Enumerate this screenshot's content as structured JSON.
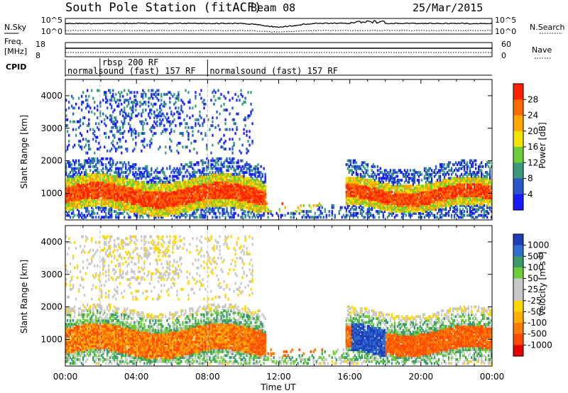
{
  "header": {
    "station": "South Pole Station (fitACF)",
    "beam": "Beam 08",
    "date": "25/Mar/2015"
  },
  "top_panels": {
    "nsky_label": "N.Sky",
    "nsky_ticks": [
      "10^5",
      "10^0"
    ],
    "nsearch_label": "N.Search",
    "nsearch_ticks": [
      "10^5",
      "10^0"
    ],
    "freq_label_1": "Freq.",
    "freq_label_2": "[MHz]",
    "freq_ticks": [
      "18",
      "8"
    ],
    "nave_label": "Nave",
    "nave_ticks": [
      "60",
      "0"
    ],
    "cpid_label": "CPID",
    "cpid_segments": [
      {
        "start_hour": 0,
        "end_hour": 1.95,
        "label": "normalsound (fast) 157 RF"
      },
      {
        "start_hour": 1.95,
        "end_hour": 8.0,
        "label": "rbsp 200 RF"
      },
      {
        "start_hour": 8.0,
        "end_hour": 24,
        "label": "normalsound (fast) 157 RF"
      }
    ]
  },
  "chart_data": [
    {
      "type": "heatmap",
      "quantity": "Power",
      "xlabel": "Time UT",
      "ylabel": "Slant Range [km]",
      "xlim": [
        0,
        24
      ],
      "ylim": [
        180,
        4500
      ],
      "yticks": [
        "1000",
        "2000",
        "3000",
        "4000"
      ],
      "colorbar_label": "Power [dB]",
      "colorbar_ticks": [
        "4",
        "8",
        "12",
        "16",
        "20",
        "24",
        "28"
      ],
      "colorbar_colors": [
        "#1a1aff",
        "#2a58c8",
        "#3d9a7a",
        "#6ccf3a",
        "#f2e200",
        "#ffa500",
        "#ff6a00",
        "#ff2200"
      ]
    },
    {
      "type": "heatmap",
      "quantity": "Velocity",
      "xlabel": "Time UT",
      "ylabel": "Slant Range [km]",
      "xlim": [
        0,
        24
      ],
      "ylim": [
        180,
        4500
      ],
      "yticks": [
        "1000",
        "2000",
        "3000",
        "4000"
      ],
      "colorbar_label": "Velocity [m s^-1]",
      "colorbar_ticks": [
        "1000",
        "500",
        "100",
        "50",
        "25",
        "-25",
        "-50",
        "-100",
        "-500",
        "-1000"
      ],
      "colorbar_colors": [
        "#1f3fb8",
        "#2f6fd0",
        "#3a9a6a",
        "#6ccc3a",
        "#c8c8c8",
        "#c8c8c8",
        "#ffd700",
        "#ffae00",
        "#ff7a00",
        "#ff4a00",
        "#e60000"
      ]
    }
  ],
  "time_axis": {
    "label": "Time UT",
    "ticks": [
      "00:00",
      "04:00",
      "08:00",
      "12:00",
      "16:00",
      "20:00",
      "00:00"
    ]
  },
  "colors": {
    "background": "#ffffff",
    "axes": "#000000",
    "guide": "#c0c0c0"
  }
}
